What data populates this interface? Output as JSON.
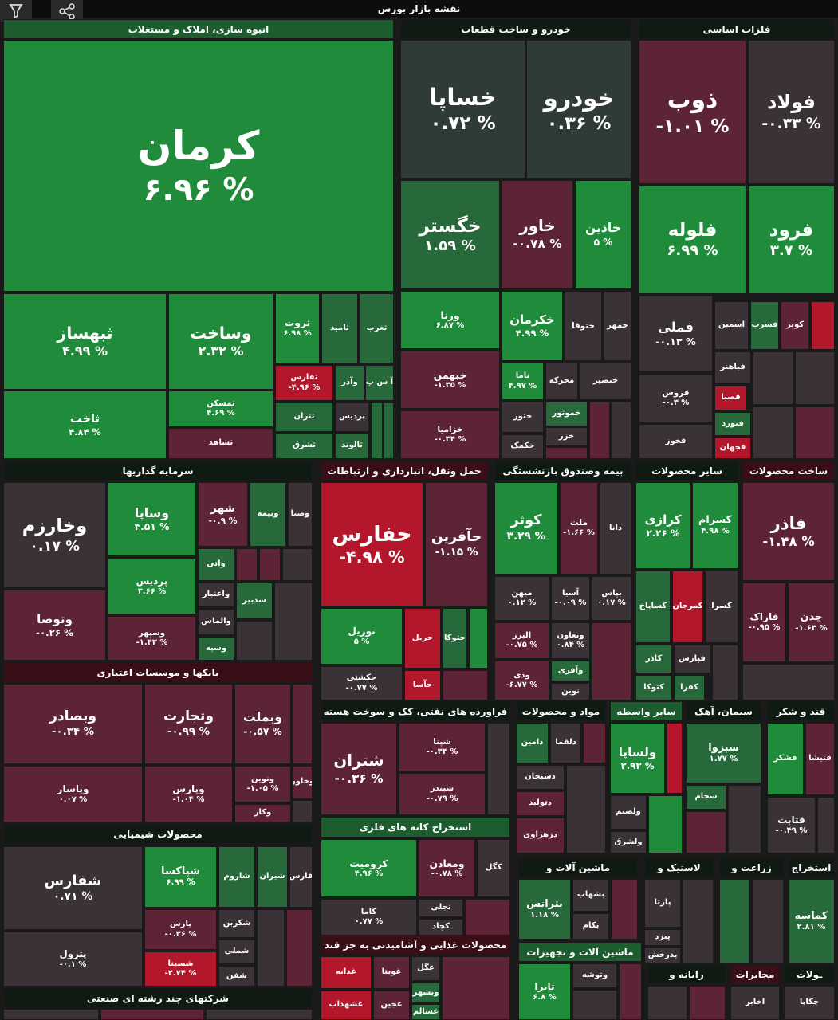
{
  "title": "نقشه بازار بورس",
  "sectors": [
    {
      "name": "انبوه سازی، املاک و مستغلات",
      "tiles": [
        {
          "name": "کرمان",
          "change": "۶.۹۶ %"
        },
        {
          "name": "ثبهساز",
          "change": "۴.۹۹ %"
        },
        {
          "name": "وساخت",
          "change": "۲.۳۲ %"
        },
        {
          "name": "ثروت",
          "change": "۶.۹۸ %"
        },
        {
          "name": "ثامید"
        },
        {
          "name": "ثغرب"
        },
        {
          "name": "ثاخت",
          "change": "۴.۸۴ %"
        },
        {
          "name": "ثمسکن",
          "change": "۴.۶۹ %"
        },
        {
          "name": "ثشاهد"
        },
        {
          "name": "ثفارس",
          "change": "-۴.۹۶ %"
        },
        {
          "name": "وآذر"
        },
        {
          "name": "آ س پ"
        },
        {
          "name": "ثتران"
        },
        {
          "name": "پردیس"
        },
        {
          "name": "ثالوند"
        },
        {
          "name": "ثشرق"
        }
      ]
    },
    {
      "name": "خودرو و ساخت قطعات",
      "tiles": [
        {
          "name": "خساپا",
          "change": "۰.۷۲ %"
        },
        {
          "name": "خودرو",
          "change": "۰.۳۶ %"
        },
        {
          "name": "خگستر",
          "change": "۱.۵۹ %"
        },
        {
          "name": "خاور",
          "change": "-۰.۷۸ %"
        },
        {
          "name": "خاذین",
          "change": "۵ %"
        },
        {
          "name": "ورنا",
          "change": "۶.۸۷ %"
        },
        {
          "name": "خکرمان",
          "change": "۴.۹۹ %"
        },
        {
          "name": "ختوقا"
        },
        {
          "name": "خمهر"
        },
        {
          "name": "خبهمن",
          "change": "-۱.۳۵ %"
        },
        {
          "name": "ناما",
          "change": "۴.۹۷ %"
        },
        {
          "name": "محرکه"
        },
        {
          "name": "خنصیر"
        },
        {
          "name": "خزامیا",
          "change": "-۰.۳۴ %"
        },
        {
          "name": "ختور"
        },
        {
          "name": "خموتور"
        },
        {
          "name": "خکمک"
        },
        {
          "name": "خزر"
        }
      ]
    },
    {
      "name": "فلزات اساسی",
      "tiles": [
        {
          "name": "ذوب",
          "change": "-۱.۰۱ %"
        },
        {
          "name": "فولاد",
          "change": "-۰.۳۳ %"
        },
        {
          "name": "فلوله",
          "change": "۶.۹۹ %"
        },
        {
          "name": "فرود",
          "change": "۳.۷ %"
        },
        {
          "name": "فملی",
          "change": "-۰.۱۳ %"
        },
        {
          "name": "اسمین"
        },
        {
          "name": "فسرب"
        },
        {
          "name": "کویر"
        },
        {
          "name": "فباهنر"
        },
        {
          "name": "فصبا"
        },
        {
          "name": "فروس",
          "change": "-۰.۳ %"
        },
        {
          "name": "فنورد"
        },
        {
          "name": "فخوز"
        },
        {
          "name": "فجهان"
        }
      ]
    },
    {
      "name": "سرمایه گذاریها",
      "tiles": [
        {
          "name": "وخارزم",
          "change": "۰.۱۷ %"
        },
        {
          "name": "وساپا",
          "change": "۴.۵۱ %"
        },
        {
          "name": "شهر",
          "change": "-۰.۹ %"
        },
        {
          "name": "وبیمه"
        },
        {
          "name": "وصنا"
        },
        {
          "name": "پردیس",
          "change": "۳.۶۶ %"
        },
        {
          "name": "واتی"
        },
        {
          "name": "واعتبار"
        },
        {
          "name": "سدبیر"
        },
        {
          "name": "وتوصا",
          "change": "-۰.۲۶ %"
        },
        {
          "name": "وسپهر",
          "change": "-۱.۴۳ %"
        },
        {
          "name": "والماس"
        },
        {
          "name": "وسپه"
        }
      ]
    },
    {
      "name": "بانکها و موسسات اعتباری",
      "tiles": [
        {
          "name": "وبصادر",
          "change": "-۰.۳۴ %"
        },
        {
          "name": "وتجارت",
          "change": "-۰.۹۹ %"
        },
        {
          "name": "وبملت",
          "change": "-۰.۵۷ %"
        },
        {
          "name": "وپاسار",
          "change": "۰.۰۷ %"
        },
        {
          "name": "وپارس",
          "change": "-۱.۰۴ %"
        },
        {
          "name": "ونوین",
          "change": "-۱.۰۵ %"
        },
        {
          "name": "وخاور"
        },
        {
          "name": "وکار"
        }
      ]
    },
    {
      "name": "محصولات شیمیایی",
      "tiles": [
        {
          "name": "شفارس",
          "change": "۰.۷۱ %"
        },
        {
          "name": "شپاکسا",
          "change": "۶.۹۹ %"
        },
        {
          "name": "شاروم"
        },
        {
          "name": "شیران"
        },
        {
          "name": "فارس"
        },
        {
          "name": "پترول",
          "change": "-۰.۱ %"
        },
        {
          "name": "پارس",
          "change": "-۰.۳۶ %"
        },
        {
          "name": "شکربن"
        },
        {
          "name": "شسینا",
          "change": "-۲.۷۴ %"
        },
        {
          "name": "شملی"
        },
        {
          "name": "شفن"
        }
      ]
    },
    {
      "name": "شرکتهای چند رشته ای صنعتی",
      "tiles": []
    },
    {
      "name": "حمل ونقل، انبارداری و ارتباطات",
      "tiles": [
        {
          "name": "حفارس",
          "change": "-۴.۹۸ %"
        },
        {
          "name": "حآفرین",
          "change": "-۱.۱۵ %"
        },
        {
          "name": "توریل",
          "change": "۵ %"
        },
        {
          "name": "حریل"
        },
        {
          "name": "حتوکا"
        },
        {
          "name": "حکشتی",
          "change": "-۰.۷۷ %"
        },
        {
          "name": "حآسا"
        }
      ]
    },
    {
      "name": "بیمه وصندوق بازنشستگی",
      "tiles": [
        {
          "name": "کوثر",
          "change": "۳.۲۹ %"
        },
        {
          "name": "ملت",
          "change": "-۱.۶۶ %"
        },
        {
          "name": "دانا"
        },
        {
          "name": "میهن",
          "change": "۰.۱۲ %"
        },
        {
          "name": "آسیا",
          "change": "-۰.۰۹ %"
        },
        {
          "name": "بپاس",
          "change": "۰.۱۷ %"
        },
        {
          "name": "البرز",
          "change": "-۰.۷۵ %"
        },
        {
          "name": "وتعاون",
          "change": "۰.۸۴ %"
        },
        {
          "name": "وآفری"
        },
        {
          "name": "ودی",
          "change": "-۶.۷۷ %"
        },
        {
          "name": "نوین"
        }
      ]
    },
    {
      "name": "سایر محصولات",
      "tiles": [
        {
          "name": "کرازی",
          "change": "۲.۲۶ %"
        },
        {
          "name": "کسرام",
          "change": "۴.۹۸ %"
        },
        {
          "name": "کساپاخ"
        },
        {
          "name": "کمرجان"
        },
        {
          "name": "کسرا"
        },
        {
          "name": "کاذر"
        },
        {
          "name": "فپارس"
        },
        {
          "name": "کتوکا"
        },
        {
          "name": "کفرا"
        }
      ]
    },
    {
      "name": "ساخت محصولات",
      "tiles": [
        {
          "name": "فاذر",
          "change": "-۱.۴۸ %"
        },
        {
          "name": "فاراک",
          "change": "-۰.۹۵ %"
        },
        {
          "name": "چدن",
          "change": "-۱.۶۳ %"
        }
      ]
    },
    {
      "name": "فراورده های نفتی، کک و سوخت هسته",
      "tiles": [
        {
          "name": "شتران",
          "change": "-۰.۳۶ %"
        },
        {
          "name": "شپنا",
          "change": "-۰.۳۴ %"
        },
        {
          "name": "شبندر",
          "change": "-۰.۷۹ %"
        }
      ]
    },
    {
      "name": "استخراج کانه های فلزی",
      "tiles": [
        {
          "name": "کرومیت",
          "change": "۴.۹۶ %"
        },
        {
          "name": "ومعادن",
          "change": "-۰.۷۸ %"
        },
        {
          "name": "کگل"
        },
        {
          "name": "کاما",
          "change": "۰.۷۷ %"
        },
        {
          "name": "تجلی"
        },
        {
          "name": "کچاد"
        }
      ]
    },
    {
      "name": "محصولات غذایی و آشامیدنی به جز قند",
      "tiles": [
        {
          "name": "غدانه"
        },
        {
          "name": "غویتا"
        },
        {
          "name": "غگل"
        },
        {
          "name": "وبشهر"
        },
        {
          "name": "عجین"
        },
        {
          "name": "غشهداب"
        },
        {
          "name": "غسالم"
        }
      ]
    },
    {
      "name": "مواد و محصولات",
      "tiles": [
        {
          "name": "دامین"
        },
        {
          "name": "دلقما"
        },
        {
          "name": "دسبحان"
        },
        {
          "name": "دتولید"
        },
        {
          "name": "دزهراوی"
        }
      ]
    },
    {
      "name": "سایر واسطه",
      "tiles": [
        {
          "name": "ولساپا",
          "change": "۲.۹۳ %"
        },
        {
          "name": "ولصنم"
        },
        {
          "name": "ولشرق"
        }
      ]
    },
    {
      "name": "سیمان، آهک",
      "tiles": [
        {
          "name": "سبزوا",
          "change": "۱.۷۷ %"
        },
        {
          "name": "سجام"
        }
      ]
    },
    {
      "name": "قند و شکر",
      "tiles": [
        {
          "name": "قشکر"
        },
        {
          "name": "قنیشا"
        },
        {
          "name": "قثابت",
          "change": "-۰.۴۹ %"
        }
      ]
    },
    {
      "name": "ماشین آلات و",
      "tiles": [
        {
          "name": "بترانس",
          "change": "۱.۱۸ %"
        },
        {
          "name": "بشهاب"
        },
        {
          "name": "بکام"
        }
      ]
    },
    {
      "name": "لاستیک و",
      "tiles": [
        {
          "name": "پارتا"
        },
        {
          "name": "پیزد"
        },
        {
          "name": "پدرخش"
        }
      ]
    },
    {
      "name": "زراعت و",
      "tiles": []
    },
    {
      "name": "استخراج",
      "tiles": [
        {
          "name": "کماسه",
          "change": "۲.۸۱ %"
        }
      ]
    },
    {
      "name": "ماشین آلات و تجهیزات",
      "tiles": [
        {
          "name": "تایرا",
          "change": "۶.۸ %"
        },
        {
          "name": "وتوشه"
        }
      ]
    },
    {
      "name": "رایانه و",
      "tiles": []
    },
    {
      "name": "مخابرات",
      "tiles": [
        {
          "name": "اخابر"
        }
      ]
    },
    {
      "name": "ـولات",
      "tiles": [
        {
          "name": "چکاپا"
        }
      ]
    }
  ]
}
